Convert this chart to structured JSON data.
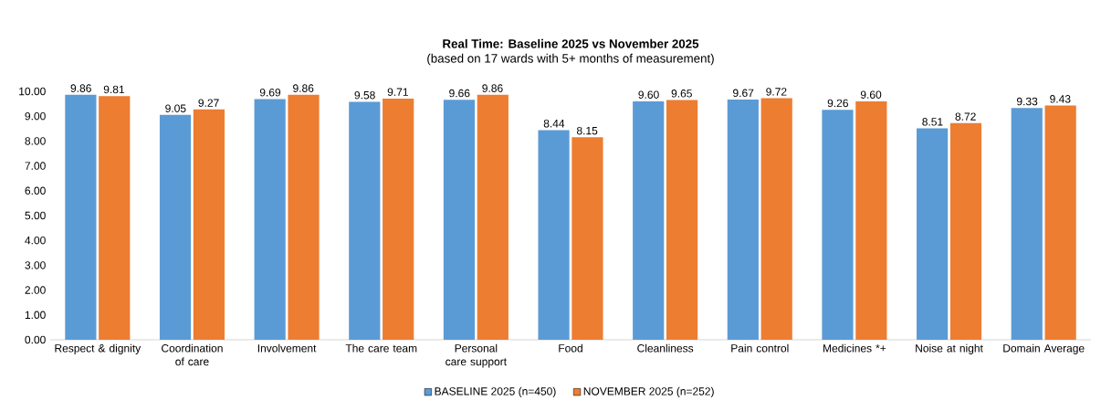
{
  "chart_data": {
    "type": "bar",
    "title": "Real Time: Baseline 2025 vs November 2025",
    "subtitle": "(based on 17 wards with 5+ months of measurement)",
    "categories": [
      "Respect & dignity",
      "Coordination of care",
      "Involvement",
      "The care team",
      "Personal care support",
      "Food",
      "Cleanliness",
      "Pain control",
      "Medicines *+",
      "Noise at night",
      "Domain Average"
    ],
    "series": [
      {
        "name": "BASELINE 2025 (n=450)",
        "color": "#5b9bd5",
        "values": [
          9.86,
          9.05,
          9.69,
          9.58,
          9.66,
          8.44,
          9.6,
          9.67,
          9.26,
          8.51,
          9.33
        ],
        "value_labels": [
          "9.86",
          "9.05",
          "9.69",
          "9.58",
          "9.66",
          "8.44",
          "9.60",
          "9.67",
          "9.26",
          "8.51",
          "9.33"
        ]
      },
      {
        "name": "NOVEMBER 2025 (n=252)",
        "color": "#ed7d31",
        "values": [
          9.81,
          9.27,
          9.86,
          9.71,
          9.86,
          8.15,
          9.65,
          9.72,
          9.6,
          8.72,
          9.43
        ],
        "value_labels": [
          "9.81",
          "9.27",
          "9.86",
          "9.71",
          "9.86",
          "8.15",
          "9.65",
          "9.72",
          "9.60",
          "8.72",
          "9.43"
        ]
      }
    ],
    "ylim": [
      0,
      10
    ],
    "yticks": [
      {
        "value": 0,
        "label": "0.00"
      },
      {
        "value": 1,
        "label": "1.00"
      },
      {
        "value": 2,
        "label": "2.00"
      },
      {
        "value": 3,
        "label": "3.00"
      },
      {
        "value": 4,
        "label": "4.00"
      },
      {
        "value": 5,
        "label": "5.00"
      },
      {
        "value": 6,
        "label": "6.00"
      },
      {
        "value": 7,
        "label": "7.00"
      },
      {
        "value": 8,
        "label": "8.00"
      },
      {
        "value": 9,
        "label": "9.00"
      },
      {
        "value": 10,
        "label": "10.00"
      }
    ],
    "legend": "bottom"
  }
}
